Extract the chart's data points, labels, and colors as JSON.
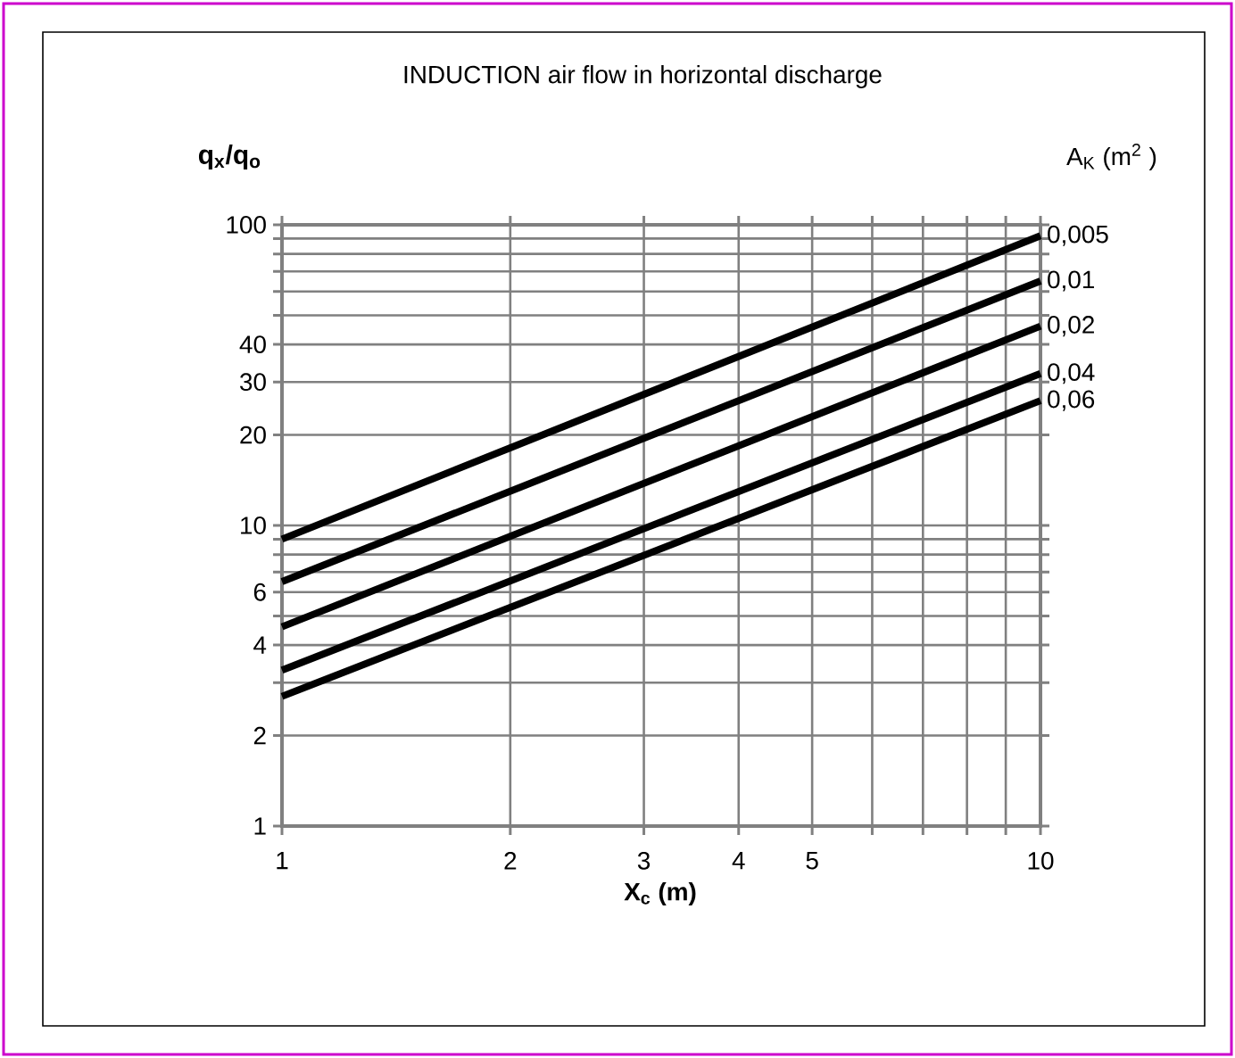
{
  "chart_data": {
    "type": "line",
    "title": "INDUCTION air flow in horizontal discharge",
    "xlabel": "X$_{c}$ (m)",
    "ylabel": "q$_{x}$/q$_{o}$",
    "legend_title": "A$_{K}$ (m$^{2}$ )",
    "log": "xy",
    "grid": true,
    "marker": "none",
    "line_style": "solid",
    "xlim": [
      1,
      10
    ],
    "ylim": [
      1,
      100
    ],
    "xticks": [
      1,
      2,
      3,
      4,
      5,
      {
        "value": 6,
        "label": null
      },
      {
        "value": 7,
        "label": null
      },
      {
        "value": 8,
        "label": null
      },
      {
        "value": 9,
        "label": null
      },
      10
    ],
    "yticks": [
      1,
      2,
      {
        "value": 3,
        "label": null
      },
      4,
      {
        "value": 5,
        "label": null
      },
      6,
      {
        "value": 7,
        "label": null
      },
      {
        "value": 8,
        "label": null
      },
      {
        "value": 9,
        "label": null
      },
      10,
      20,
      30,
      40,
      {
        "value": 50,
        "label": null
      },
      {
        "value": 60,
        "label": null
      },
      {
        "value": 70,
        "label": null
      },
      {
        "value": 80,
        "label": null
      },
      {
        "value": 90,
        "label": null
      },
      100
    ],
    "x": [
      1,
      10
    ],
    "series": [
      {
        "name": "0,005",
        "color": "#000000",
        "values": [
          9.0,
          92
        ]
      },
      {
        "name": "0,01",
        "color": "#000000",
        "values": [
          6.5,
          65
        ]
      },
      {
        "name": "0,02",
        "color": "#000000",
        "values": [
          4.6,
          46
        ]
      },
      {
        "name": "0,04",
        "color": "#000000",
        "values": [
          3.3,
          32
        ]
      },
      {
        "name": "0,06",
        "color": "#000000",
        "values": [
          2.7,
          26
        ]
      }
    ]
  }
}
